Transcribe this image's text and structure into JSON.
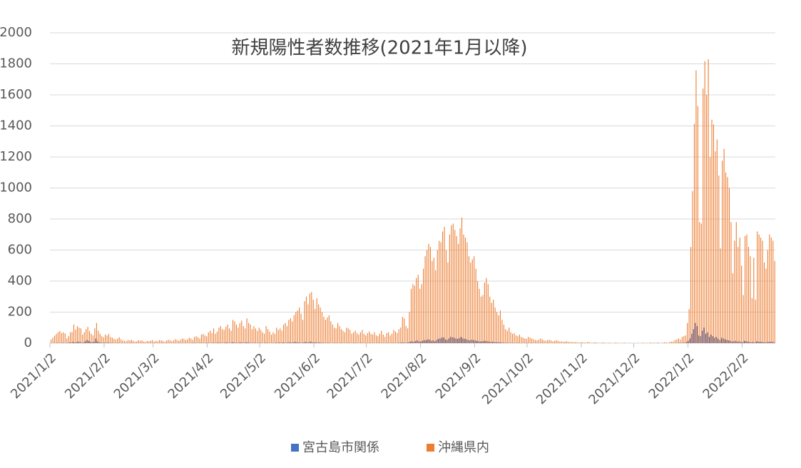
{
  "chart_data": {
    "type": "bar",
    "title": "新規陽性者数推移(2021年1月以降)",
    "categories": [
      "2021/1/2",
      null,
      null,
      null,
      null,
      null,
      null,
      null,
      null,
      null,
      null,
      null,
      null,
      null,
      null,
      null,
      null,
      null,
      null,
      null,
      null,
      null,
      null,
      null,
      null,
      null,
      null,
      null,
      null,
      null,
      null,
      "2021/2/2",
      null,
      null,
      null,
      null,
      null,
      null,
      null,
      null,
      null,
      null,
      null,
      null,
      null,
      null,
      null,
      null,
      null,
      null,
      null,
      null,
      null,
      null,
      null,
      null,
      null,
      null,
      null,
      "2021/3/2",
      null,
      null,
      null,
      null,
      null,
      null,
      null,
      null,
      null,
      null,
      null,
      null,
      null,
      null,
      null,
      null,
      null,
      null,
      null,
      null,
      null,
      null,
      null,
      null,
      null,
      null,
      null,
      null,
      null,
      null,
      "2021/4/2",
      null,
      null,
      null,
      null,
      null,
      null,
      null,
      null,
      null,
      null,
      null,
      null,
      null,
      null,
      null,
      null,
      null,
      null,
      null,
      null,
      null,
      null,
      null,
      null,
      null,
      null,
      null,
      null,
      null,
      "2021/5/2",
      null,
      null,
      null,
      null,
      null,
      null,
      null,
      null,
      null,
      null,
      null,
      null,
      null,
      null,
      null,
      null,
      null,
      null,
      null,
      null,
      null,
      null,
      null,
      null,
      null,
      null,
      null,
      null,
      null,
      null,
      "2021/6/2",
      null,
      null,
      null,
      null,
      null,
      null,
      null,
      null,
      null,
      null,
      null,
      null,
      null,
      null,
      null,
      null,
      null,
      null,
      null,
      null,
      null,
      null,
      null,
      null,
      null,
      null,
      null,
      null,
      null,
      "2021/7/2",
      null,
      null,
      null,
      null,
      null,
      null,
      null,
      null,
      null,
      null,
      null,
      null,
      null,
      null,
      null,
      null,
      null,
      null,
      null,
      null,
      null,
      null,
      null,
      null,
      null,
      null,
      null,
      null,
      null,
      null,
      "2021/8/2",
      null,
      null,
      null,
      null,
      null,
      null,
      null,
      null,
      null,
      null,
      null,
      null,
      null,
      null,
      null,
      null,
      null,
      null,
      null,
      null,
      null,
      null,
      null,
      null,
      null,
      null,
      null,
      null,
      null,
      null,
      "2021/9/2",
      null,
      null,
      null,
      null,
      null,
      null,
      null,
      null,
      null,
      null,
      null,
      null,
      null,
      null,
      null,
      null,
      null,
      null,
      null,
      null,
      null,
      null,
      null,
      null,
      null,
      null,
      null,
      null,
      null,
      "2021/10/2",
      null,
      null,
      null,
      null,
      null,
      null,
      null,
      null,
      null,
      null,
      null,
      null,
      null,
      null,
      null,
      null,
      null,
      null,
      null,
      null,
      null,
      null,
      null,
      null,
      null,
      null,
      null,
      null,
      null,
      null,
      "2021/11/2",
      null,
      null,
      null,
      null,
      null,
      null,
      null,
      null,
      null,
      null,
      null,
      null,
      null,
      null,
      null,
      null,
      null,
      null,
      null,
      null,
      null,
      null,
      null,
      null,
      null,
      null,
      null,
      null,
      null,
      "2021/12/2",
      null,
      null,
      null,
      null,
      null,
      null,
      null,
      null,
      null,
      null,
      null,
      null,
      null,
      null,
      null,
      null,
      null,
      null,
      null,
      null,
      null,
      null,
      null,
      null,
      null,
      null,
      null,
      null,
      null,
      null,
      "2022/1/2",
      null,
      null,
      null,
      null,
      null,
      null,
      null,
      null,
      null,
      null,
      null,
      null,
      null,
      null,
      null,
      null,
      null,
      null,
      null,
      null,
      null,
      null,
      null,
      null,
      null,
      null,
      null,
      null,
      null,
      null,
      "2022/2/2",
      null,
      null,
      null,
      null,
      null,
      null,
      null,
      null,
      null,
      null,
      null,
      null,
      null,
      null,
      null,
      null,
      null,
      null
    ],
    "series": [
      {
        "name": "宮古島市関係",
        "color": "#4472c4",
        "values": [
          0,
          0,
          1,
          0,
          2,
          1,
          0,
          3,
          1,
          0,
          2,
          5,
          3,
          8,
          4,
          6,
          10,
          7,
          3,
          5,
          12,
          20,
          15,
          8,
          5,
          10,
          30,
          12,
          6,
          3,
          2,
          3,
          2,
          4,
          1,
          2,
          1,
          0,
          1,
          2,
          0,
          1,
          0,
          0,
          1,
          0,
          2,
          1,
          0,
          0,
          1,
          0,
          0,
          0,
          1,
          0,
          0,
          1,
          0,
          0,
          0,
          1,
          0,
          0,
          1,
          0,
          0,
          1,
          0,
          0,
          0,
          1,
          0,
          0,
          1,
          0,
          0,
          0,
          1,
          0,
          0,
          1,
          2,
          1,
          0,
          1,
          2,
          1,
          0,
          1,
          2,
          1,
          0,
          3,
          1,
          2,
          4,
          3,
          2,
          1,
          3,
          5,
          2,
          1,
          6,
          4,
          3,
          2,
          4,
          5,
          3,
          2,
          6,
          4,
          3,
          1,
          2,
          3,
          1,
          2,
          2,
          1,
          0,
          3,
          2,
          1,
          0,
          2,
          1,
          3,
          2,
          4,
          2,
          5,
          3,
          2,
          4,
          6,
          3,
          5,
          8,
          6,
          4,
          3,
          2,
          5,
          8,
          4,
          6,
          10,
          5,
          4,
          6,
          3,
          5,
          2,
          3,
          1,
          2,
          3,
          1,
          0,
          1,
          2,
          1,
          0,
          2,
          1,
          0,
          1,
          2,
          1,
          0,
          1,
          2,
          1,
          0,
          1,
          2,
          0,
          1,
          0,
          1,
          2,
          0,
          1,
          0,
          1,
          2,
          0,
          1,
          0,
          1,
          2,
          0,
          1,
          2,
          1,
          0,
          3,
          2,
          5,
          4,
          2,
          3,
          6,
          10,
          12,
          8,
          15,
          18,
          10,
          12,
          15,
          20,
          18,
          25,
          22,
          15,
          18,
          12,
          20,
          28,
          30,
          35,
          38,
          25,
          20,
          30,
          40,
          38,
          35,
          30,
          28,
          32,
          40,
          30,
          28,
          25,
          20,
          18,
          22,
          20,
          18,
          15,
          12,
          10,
          12,
          14,
          15,
          12,
          10,
          8,
          9,
          7,
          6,
          5,
          6,
          4,
          3,
          2,
          3,
          2,
          1,
          2,
          1,
          0,
          1,
          2,
          0,
          1,
          0,
          1,
          1,
          0,
          1,
          0,
          0,
          1,
          0,
          0,
          1,
          0,
          0,
          0,
          1,
          0,
          0,
          0,
          1,
          0,
          0,
          0,
          0,
          1,
          0,
          0,
          0,
          0,
          0,
          1,
          0,
          0,
          0,
          0,
          0,
          0,
          0,
          0,
          0,
          0,
          0,
          0,
          0,
          0,
          0,
          0,
          0,
          0,
          0,
          0,
          0,
          0,
          0,
          0,
          0,
          0,
          0,
          0,
          0,
          0,
          0,
          0,
          0,
          0,
          0,
          0,
          0,
          0,
          0,
          0,
          0,
          0,
          0,
          0,
          0,
          0,
          0,
          0,
          0,
          0,
          0,
          0,
          0,
          0,
          0,
          0,
          0,
          0,
          1,
          2,
          1,
          3,
          2,
          8,
          15,
          30,
          60,
          90,
          130,
          110,
          50,
          45,
          80,
          100,
          60,
          70,
          40,
          55,
          45,
          35,
          40,
          30,
          20,
          35,
          30,
          25,
          20,
          18,
          15,
          10,
          12,
          15,
          10,
          12,
          8,
          6,
          15,
          12,
          10,
          8,
          5,
          8,
          4,
          12,
          10,
          9,
          8,
          6,
          5,
          7,
          8,
          10,
          8,
          6
        ]
      },
      {
        "name": "沖縄県内",
        "color": "#ed7d31",
        "values": [
          23,
          35,
          48,
          60,
          71,
          78,
          65,
          70,
          62,
          30,
          45,
          70,
          72,
          120,
          88,
          110,
          100,
          95,
          55,
          70,
          90,
          105,
          78,
          60,
          50,
          95,
          130,
          80,
          60,
          45,
          38,
          55,
          48,
          60,
          40,
          35,
          28,
          22,
          30,
          38,
          25,
          18,
          15,
          12,
          20,
          18,
          22,
          15,
          10,
          12,
          20,
          15,
          18,
          10,
          8,
          14,
          12,
          16,
          20,
          10,
          15,
          12,
          20,
          18,
          14,
          8,
          16,
          22,
          20,
          12,
          18,
          25,
          20,
          15,
          22,
          30,
          28,
          20,
          25,
          35,
          30,
          22,
          40,
          45,
          38,
          30,
          55,
          60,
          50,
          45,
          70,
          80,
          65,
          95,
          60,
          75,
          100,
          110,
          90,
          85,
          105,
          120,
          95,
          80,
          150,
          140,
          120,
          100,
          130,
          145,
          110,
          95,
          160,
          130,
          120,
          90,
          110,
          95,
          80,
          100,
          85,
          70,
          60,
          110,
          90,
          75,
          55,
          70,
          60,
          100,
          85,
          95,
          80,
          120,
          130,
          110,
          150,
          160,
          140,
          180,
          200,
          210,
          230,
          190,
          150,
          270,
          300,
          250,
          320,
          330,
          280,
          220,
          290,
          250,
          230,
          200,
          170,
          150,
          165,
          180,
          140,
          120,
          100,
          95,
          130,
          110,
          90,
          80,
          70,
          100,
          95,
          85,
          60,
          70,
          80,
          65,
          55,
          70,
          85,
          60,
          50,
          65,
          75,
          60,
          55,
          70,
          50,
          45,
          60,
          80,
          55,
          40,
          65,
          70,
          50,
          60,
          85,
          75,
          65,
          90,
          100,
          170,
          160,
          110,
          95,
          200,
          350,
          380,
          370,
          420,
          440,
          350,
          380,
          480,
          560,
          600,
          640,
          620,
          530,
          550,
          470,
          600,
          660,
          650,
          720,
          750,
          600,
          520,
          700,
          760,
          770,
          730,
          690,
          640,
          740,
          809,
          700,
          680,
          650,
          560,
          520,
          540,
          560,
          480,
          400,
          350,
          300,
          310,
          390,
          420,
          380,
          300,
          260,
          280,
          230,
          200,
          180,
          210,
          150,
          120,
          90,
          80,
          100,
          70,
          60,
          65,
          50,
          45,
          55,
          40,
          35,
          30,
          28,
          40,
          35,
          30,
          25,
          20,
          18,
          22,
          30,
          25,
          18,
          15,
          20,
          22,
          18,
          12,
          14,
          20,
          15,
          10,
          12,
          8,
          10,
          12,
          9,
          6,
          8,
          5,
          7,
          6,
          4,
          5,
          6,
          4,
          3,
          8,
          5,
          2,
          3,
          6,
          4,
          2,
          1,
          3,
          5,
          2,
          1,
          3,
          2,
          0,
          1,
          4,
          2,
          1,
          0,
          2,
          3,
          1,
          0,
          2,
          1,
          0,
          0,
          1,
          2,
          0,
          1,
          3,
          0,
          2,
          1,
          4,
          2,
          3,
          1,
          5,
          2,
          0,
          3,
          6,
          4,
          2,
          8,
          10,
          12,
          20,
          25,
          30,
          22,
          40,
          45,
          50,
          130,
          220,
          620,
          980,
          1414,
          1759,
          1528,
          780,
          770,
          1641,
          1817,
          1600,
          1829,
          1200,
          1440,
          1410,
          1236,
          1313,
          1080,
          610,
          1176,
          1253,
          1100,
          1070,
          1000,
          780,
          450,
          660,
          780,
          620,
          680,
          500,
          310,
          690,
          700,
          620,
          560,
          290,
          550,
          280,
          720,
          700,
          680,
          660,
          520,
          480,
          600,
          700,
          680,
          660,
          530
        ]
      }
    ],
    "ylim": [
      0,
      2000
    ],
    "yticks": [
      0,
      200,
      400,
      600,
      800,
      1000,
      1200,
      1400,
      1600,
      1800,
      2000
    ],
    "grid": true,
    "legend": "bottom"
  }
}
